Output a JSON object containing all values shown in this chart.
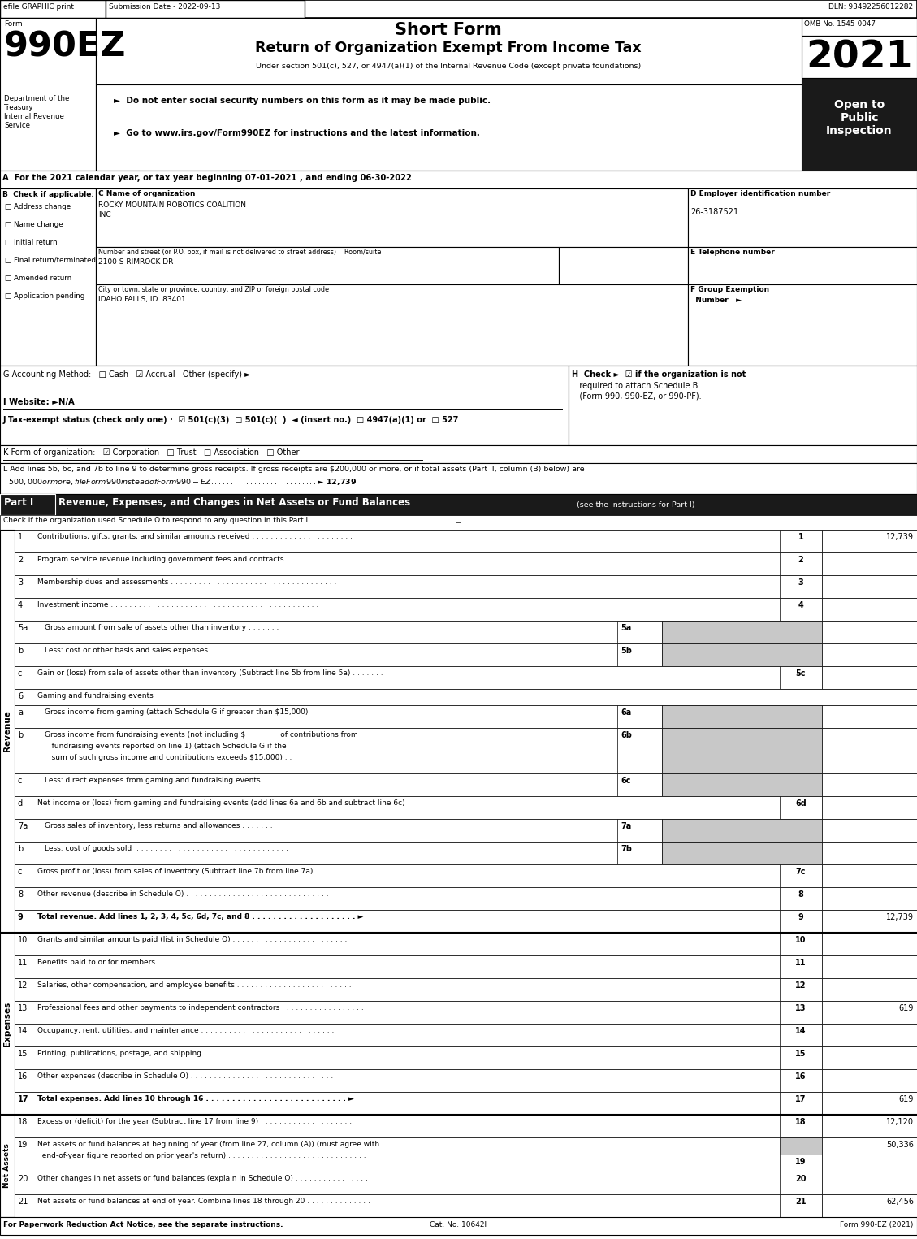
{
  "efile_header": "efile GRAPHIC print",
  "submission_date": "Submission Date - 2022-09-13",
  "dln": "DLN: 93492256012282",
  "short_form": "Short Form",
  "return_title": "Return of Organization Exempt From Income Tax",
  "omb": "OMB No. 1545-0047",
  "year": "2021",
  "under_section": "Under section 501(c), 527, or 4947(a)(1) of the Internal Revenue Code (except private foundations)",
  "instr1": "►  Do not enter social security numbers on this form as it may be made public.",
  "instr2": "►  Go to www.irs.gov/Form990EZ for instructions and the latest information.",
  "open_to": "Open to\nPublic\nInspection",
  "dept": "Department of the\nTreasury\nInternal Revenue\nService",
  "sec_a": "A  For the 2021 calendar year, or tax year beginning 07-01-2021 , and ending 06-30-2022",
  "check_items": [
    "Address change",
    "Name change",
    "Initial return",
    "Final return/terminated",
    "Amended return",
    "Application pending"
  ],
  "org_name1": "ROCKY MOUNTAIN ROBOTICS COALITION",
  "org_name2": "INC",
  "ein": "26-3187521",
  "street_label": "Number and street (or P.O. box, if mail is not delivered to street address)    Room/suite",
  "street": "2100 S RIMROCK DR",
  "city_label": "City or town, state or province, country, and ZIP or foreign postal code",
  "city": "IDAHO FALLS, ID  83401",
  "sec_g": "G Accounting Method:   □ Cash   ☑ Accrual   Other (specify) ►",
  "sec_h1": "H  Check ►  ☑ if the organization is not",
  "sec_h2": "   required to attach Schedule B",
  "sec_h3": "   (Form 990, 990-EZ, or 990-PF).",
  "sec_i": "I Website: ►N/A",
  "sec_j": "J Tax-exempt status (check only one) ·  ☑ 501(c)(3)  □ 501(c)(  )  ◄ (insert no.)  □ 4947(a)(1) or  □ 527",
  "sec_k": "K Form of organization:   ☑ Corporation   □ Trust   □ Association   □ Other",
  "sec_l1": "L Add lines 5b, 6c, and 7b to line 9 to determine gross receipts. If gross receipts are $200,000 or more, or if total assets (Part II, column (B) below) are",
  "sec_l2": "  $500,000 or more, file Form 990 instead of Form 990-EZ . . . . . . . . . . . . . . . . . . . . . . . . . . . ► $ 12,739",
  "part1_title": "Revenue, Expenses, and Changes in Net Assets or Fund Balances",
  "part1_sub": "(see the instructions for Part I)",
  "part1_check": "Check if the organization used Schedule O to respond to any question in this Part I . . . . . . . . . . . . . . . . . . . . . . . . . . . . . . . □",
  "revenue_rows": [
    {
      "n": "1",
      "t": "Contributions, gifts, grants, and similar amounts received . . . . . . . . . . . . . . . . . . . . . .",
      "cn": "1",
      "v": "12,739",
      "sub": false,
      "rh": 28,
      "ml": false
    },
    {
      "n": "2",
      "t": "Program service revenue including government fees and contracts . . . . . . . . . . . . . . .",
      "cn": "2",
      "v": "",
      "sub": false,
      "rh": 28,
      "ml": false
    },
    {
      "n": "3",
      "t": "Membership dues and assessments . . . . . . . . . . . . . . . . . . . . . . . . . . . . . . . . . . . .",
      "cn": "3",
      "v": "",
      "sub": false,
      "rh": 28,
      "ml": false
    },
    {
      "n": "4",
      "t": "Investment income . . . . . . . . . . . . . . . . . . . . . . . . . . . . . . . . . . . . . . . . . . . . .",
      "cn": "4",
      "v": "",
      "sub": false,
      "rh": 28,
      "ml": false
    },
    {
      "n": "5a",
      "t": "Gross amount from sale of assets other than inventory . . . . . . .",
      "cn": "5a",
      "v": "",
      "sub": true,
      "rh": 28,
      "ml": false
    },
    {
      "n": "b",
      "t": "Less: cost or other basis and sales expenses . . . . . . . . . . . . . .",
      "cn": "5b",
      "v": "",
      "sub": true,
      "rh": 28,
      "ml": false
    },
    {
      "n": "c",
      "t": "Gain or (loss) from sale of assets other than inventory (Subtract line 5b from line 5a) . . . . . . .",
      "cn": "5c",
      "v": "",
      "sub": false,
      "rh": 28,
      "ml": false
    },
    {
      "n": "6",
      "t": "Gaming and fundraising events",
      "cn": "",
      "v": "",
      "sub": false,
      "rh": 20,
      "ml": false
    },
    {
      "n": "a",
      "t": "Gross income from gaming (attach Schedule G if greater than $15,000)",
      "cn": "6a",
      "v": "",
      "sub": true,
      "rh": 28,
      "ml": false
    },
    {
      "n": "b",
      "t": "Gross income from fundraising events (not including $               of contributions from\n   fundraising events reported on line 1) (attach Schedule G if the\n   sum of such gross income and contributions exceeds $15,000) . .",
      "cn": "6b",
      "v": "",
      "sub": true,
      "rh": 56,
      "ml": true
    },
    {
      "n": "c",
      "t": "Less: direct expenses from gaming and fundraising events  . . . .",
      "cn": "6c",
      "v": "",
      "sub": true,
      "rh": 28,
      "ml": false
    },
    {
      "n": "d",
      "t": "Net income or (loss) from gaming and fundraising events (add lines 6a and 6b and subtract line 6c)",
      "cn": "6d",
      "v": "",
      "sub": false,
      "rh": 28,
      "ml": false
    },
    {
      "n": "7a",
      "t": "Gross sales of inventory, less returns and allowances . . . . . . .",
      "cn": "7a",
      "v": "",
      "sub": true,
      "rh": 28,
      "ml": false
    },
    {
      "n": "b",
      "t": "Less: cost of goods sold  . . . . . . . . . . . . . . . . . . . . . . . . . . . . . . . . .",
      "cn": "7b",
      "v": "",
      "sub": true,
      "rh": 28,
      "ml": false
    },
    {
      "n": "c",
      "t": "Gross profit or (loss) from sales of inventory (Subtract line 7b from line 7a) . . . . . . . . . . .",
      "cn": "7c",
      "v": "",
      "sub": false,
      "rh": 28,
      "ml": false
    },
    {
      "n": "8",
      "t": "Other revenue (describe in Schedule O) . . . . . . . . . . . . . . . . . . . . . . . . . . . . . . .",
      "cn": "8",
      "v": "",
      "sub": false,
      "rh": 28,
      "ml": false
    },
    {
      "n": "9",
      "t": "Total revenue. Add lines 1, 2, 3, 4, 5c, 6d, 7c, and 8 . . . . . . . . . . . . . . . . . . . . ►",
      "cn": "9",
      "v": "12,739",
      "sub": false,
      "rh": 28,
      "ml": false,
      "bold": true
    }
  ],
  "expense_rows": [
    {
      "n": "10",
      "t": "Grants and similar amounts paid (list in Schedule O) . . . . . . . . . . . . . . . . . . . . . . . . .",
      "cn": "10",
      "v": "",
      "rh": 28
    },
    {
      "n": "11",
      "t": "Benefits paid to or for members . . . . . . . . . . . . . . . . . . . . . . . . . . . . . . . . . . . .",
      "cn": "11",
      "v": "",
      "rh": 28
    },
    {
      "n": "12",
      "t": "Salaries, other compensation, and employee benefits . . . . . . . . . . . . . . . . . . . . . . . . .",
      "cn": "12",
      "v": "",
      "rh": 28
    },
    {
      "n": "13",
      "t": "Professional fees and other payments to independent contractors . . . . . . . . . . . . . . . . . .",
      "cn": "13",
      "v": "619",
      "rh": 28
    },
    {
      "n": "14",
      "t": "Occupancy, rent, utilities, and maintenance . . . . . . . . . . . . . . . . . . . . . . . . . . . . .",
      "cn": "14",
      "v": "",
      "rh": 28
    },
    {
      "n": "15",
      "t": "Printing, publications, postage, and shipping. . . . . . . . . . . . . . . . . . . . . . . . . . . . .",
      "cn": "15",
      "v": "",
      "rh": 28
    },
    {
      "n": "16",
      "t": "Other expenses (describe in Schedule O) . . . . . . . . . . . . . . . . . . . . . . . . . . . . . . .",
      "cn": "16",
      "v": "",
      "rh": 28
    },
    {
      "n": "17",
      "t": "Total expenses. Add lines 10 through 16 . . . . . . . . . . . . . . . . . . . . . . . . . . . ►",
      "cn": "17",
      "v": "619",
      "rh": 28,
      "bold": true
    }
  ],
  "net_rows": [
    {
      "n": "18",
      "t": "Excess or (deficit) for the year (Subtract line 17 from line 9) . . . . . . . . . . . . . . . . . . . .",
      "cn": "18",
      "v": "12,120",
      "rh": 28,
      "ml": false
    },
    {
      "n": "19",
      "t": "Net assets or fund balances at beginning of year (from line 27, column (A)) (must agree with\n  end-of-year figure reported on prior year's return) . . . . . . . . . . . . . . . . . . . . . . . . . . . . . .",
      "cn": "19",
      "v": "50,336",
      "rh": 42,
      "ml": true,
      "gray_col": true
    },
    {
      "n": "20",
      "t": "Other changes in net assets or fund balances (explain in Schedule O) . . . . . . . . . . . . . . . .",
      "cn": "20",
      "v": "",
      "rh": 28,
      "ml": false
    },
    {
      "n": "21",
      "t": "Net assets or fund balances at end of year. Combine lines 18 through 20 . . . . . . . . . . . . . .",
      "cn": "21",
      "v": "62,456",
      "rh": 28,
      "ml": false
    }
  ],
  "footer_left": "For Paperwork Reduction Act Notice, see the separate instructions.",
  "footer_cat": "Cat. No. 10642I",
  "footer_right": "Form 990-EZ (2021)"
}
